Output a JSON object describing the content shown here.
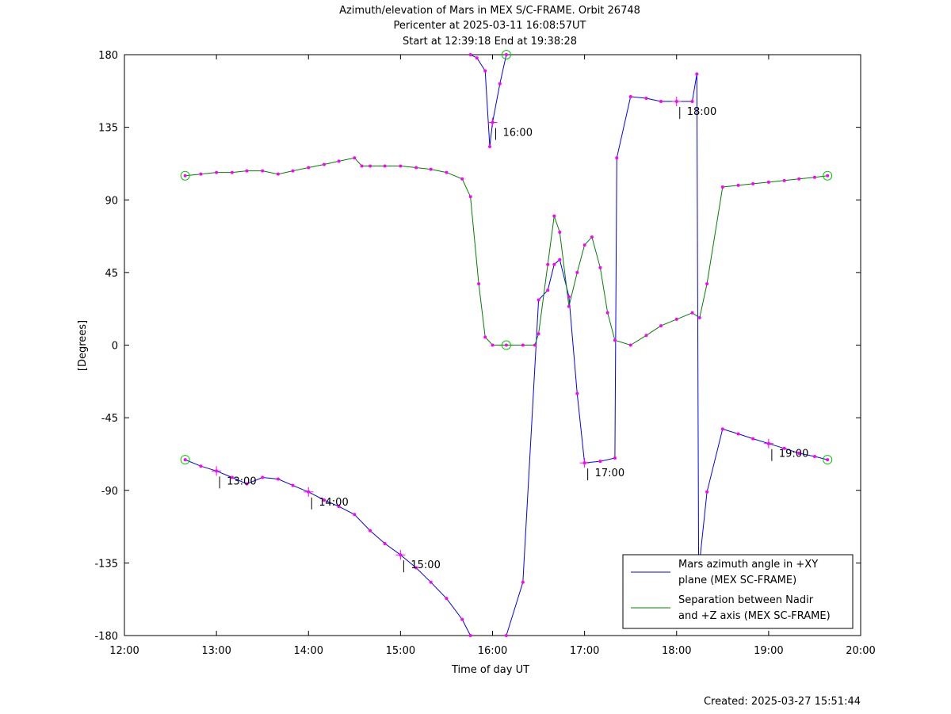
{
  "chart_data": {
    "type": "line",
    "title": [
      "Azimuth/elevation of Mars in MEX S/C-FRAME.  Orbit 26748",
      "Pericenter at 2025-03-11 16:08:57UT",
      "Start at 12:39:18 End at 19:38:28"
    ],
    "xlabel": "Time of day UT",
    "ylabel": "[Degrees]",
    "footer": "Created: 2025-03-27 15:51:44",
    "xlim": [
      12.0,
      20.0
    ],
    "ylim": [
      -180,
      180
    ],
    "x_ticks": [
      12,
      13,
      14,
      15,
      16,
      17,
      18,
      19,
      20
    ],
    "x_tick_labels": [
      "12:00",
      "13:00",
      "14:00",
      "15:00",
      "16:00",
      "17:00",
      "18:00",
      "19:00",
      "20:00"
    ],
    "y_ticks": [
      180,
      135,
      90,
      45,
      0,
      -45,
      -90,
      -135,
      -180
    ],
    "y_tick_labels": [
      "180",
      "135",
      "90",
      "45",
      "0",
      "-45",
      "-90",
      "-135",
      "-180"
    ],
    "legend_placement": "bottom-right",
    "series": [
      {
        "name": "Mars azimuth angle in +XY plane (MEX SC-FRAME)",
        "legend_lines": [
          "Mars azimuth angle in +XY",
          "plane (MEX SC-FRAME)"
        ],
        "color": "#0000ff",
        "segments": [
          [
            [
              12.66,
              -71
            ],
            [
              12.83,
              -75
            ],
            [
              13.0,
              -78
            ],
            [
              13.17,
              -82
            ],
            [
              13.33,
              -86
            ],
            [
              13.5,
              -82
            ],
            [
              13.67,
              -83
            ],
            [
              13.83,
              -87
            ],
            [
              14.0,
              -91
            ],
            [
              14.17,
              -96
            ],
            [
              14.33,
              -100
            ],
            [
              14.5,
              -105
            ],
            [
              14.67,
              -115
            ],
            [
              14.83,
              -123
            ],
            [
              15.0,
              -130
            ],
            [
              15.17,
              -138
            ],
            [
              15.33,
              -147
            ],
            [
              15.5,
              -157
            ],
            [
              15.67,
              -170
            ],
            [
              15.76,
              -180
            ]
          ],
          [
            [
              15.76,
              180
            ],
            [
              15.83,
              178
            ],
            [
              15.92,
              170
            ],
            [
              15.97,
              123
            ],
            [
              16.0,
              138
            ],
            [
              16.08,
              162
            ],
            [
              16.15,
              180
            ]
          ],
          [
            [
              16.15,
              -180
            ],
            [
              16.33,
              -147
            ],
            [
              16.5,
              28
            ],
            [
              16.6,
              34
            ],
            [
              16.67,
              50
            ],
            [
              16.73,
              53
            ],
            [
              16.83,
              30
            ],
            [
              16.92,
              -30
            ],
            [
              17.0,
              -73
            ],
            [
              17.17,
              -72
            ],
            [
              17.33,
              -70
            ],
            [
              17.35,
              116
            ],
            [
              17.5,
              154
            ],
            [
              17.67,
              153
            ],
            [
              17.83,
              151
            ],
            [
              18.0,
              151
            ],
            [
              18.17,
              151
            ],
            [
              18.22,
              168
            ],
            [
              18.24,
              -140
            ]
          ],
          [
            [
              18.24,
              -140
            ],
            [
              18.33,
              -91
            ],
            [
              18.5,
              -52
            ],
            [
              18.67,
              -55
            ],
            [
              18.83,
              -58
            ],
            [
              19.0,
              -61
            ],
            [
              19.17,
              -64
            ],
            [
              19.33,
              -67
            ],
            [
              19.5,
              -69
            ],
            [
              19.64,
              -71
            ]
          ]
        ],
        "start_end_markers": [
          [
            12.66,
            -71
          ],
          [
            19.64,
            -71
          ]
        ]
      },
      {
        "name": "Separation between Nadir and +Z axis (MEX SC-FRAME)",
        "legend_lines": [
          "Separation between Nadir",
          "and +Z axis (MEX SC-FRAME)"
        ],
        "color": "#008000",
        "segments": [
          [
            [
              12.66,
              105
            ],
            [
              12.83,
              106
            ],
            [
              13.0,
              107
            ],
            [
              13.17,
              107
            ],
            [
              13.33,
              108
            ],
            [
              13.5,
              108
            ],
            [
              13.67,
              106
            ],
            [
              13.83,
              108
            ],
            [
              14.0,
              110
            ],
            [
              14.17,
              112
            ],
            [
              14.33,
              114
            ],
            [
              14.5,
              116
            ],
            [
              14.58,
              111
            ],
            [
              14.67,
              111
            ],
            [
              14.83,
              111
            ],
            [
              15.0,
              111
            ],
            [
              15.17,
              110
            ],
            [
              15.33,
              109
            ],
            [
              15.5,
              107
            ],
            [
              15.67,
              103
            ],
            [
              15.76,
              92
            ],
            [
              15.85,
              38
            ],
            [
              15.92,
              5
            ],
            [
              16.0,
              0
            ],
            [
              16.15,
              0
            ],
            [
              16.33,
              0
            ],
            [
              16.46,
              0
            ],
            [
              16.5,
              7
            ],
            [
              16.6,
              50
            ],
            [
              16.67,
              80
            ],
            [
              16.73,
              70
            ],
            [
              16.83,
              24
            ],
            [
              16.92,
              45
            ],
            [
              17.0,
              62
            ],
            [
              17.08,
              67
            ],
            [
              17.17,
              48
            ],
            [
              17.25,
              20
            ],
            [
              17.33,
              3
            ],
            [
              17.5,
              0
            ],
            [
              17.67,
              6
            ],
            [
              17.83,
              12
            ],
            [
              18.0,
              16
            ],
            [
              18.17,
              20
            ],
            [
              18.25,
              17
            ],
            [
              18.33,
              38
            ],
            [
              18.5,
              98
            ],
            [
              18.67,
              99
            ],
            [
              18.83,
              100
            ],
            [
              19.0,
              101
            ],
            [
              19.17,
              102
            ],
            [
              19.33,
              103
            ],
            [
              19.5,
              104
            ],
            [
              19.64,
              105
            ]
          ]
        ],
        "start_end_markers": [
          [
            12.66,
            105
          ],
          [
            19.64,
            105
          ]
        ],
        "extra_markers": [
          [
            16.15,
            180
          ],
          [
            16.15,
            0
          ]
        ]
      }
    ],
    "hour_marks": [
      {
        "label": "13:00",
        "x": 13.0,
        "y": -78
      },
      {
        "label": "14:00",
        "x": 14.0,
        "y": -91
      },
      {
        "label": "15:00",
        "x": 15.0,
        "y": -130
      },
      {
        "label": "16:00",
        "x": 16.0,
        "y": 138
      },
      {
        "label": "17:00",
        "x": 17.0,
        "y": -73
      },
      {
        "label": "18:00",
        "x": 18.0,
        "y": 151
      },
      {
        "label": "19:00",
        "x": 19.0,
        "y": -61
      }
    ],
    "marker_color": "#ff00ff",
    "circle_color": "#00cc00"
  }
}
